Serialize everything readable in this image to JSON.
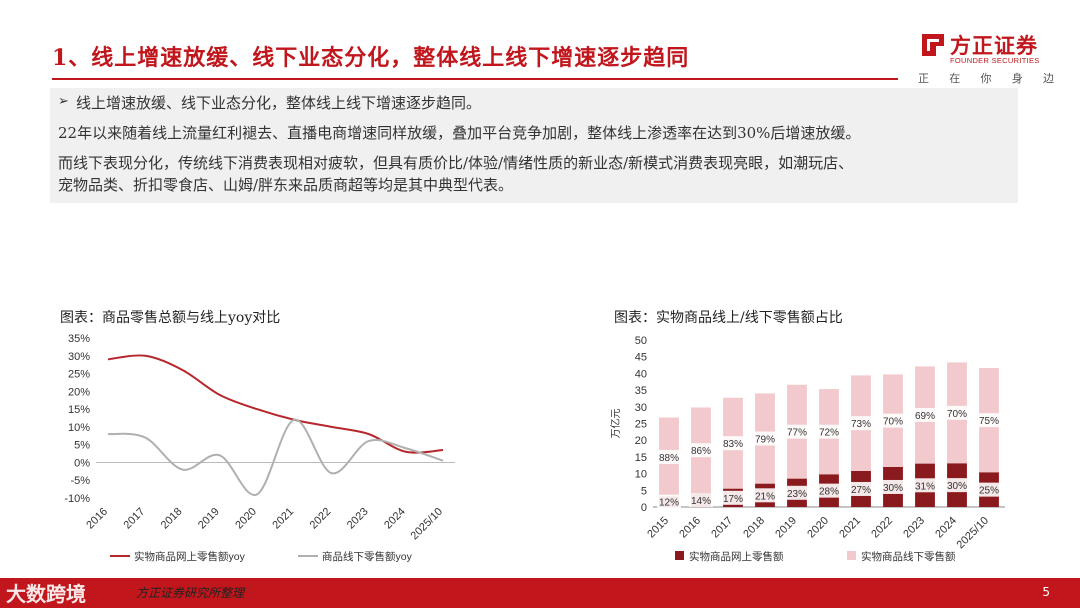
{
  "header": {
    "title": "1、线上增速放缓、线下业态分化，整体线上线下增速逐步趋同",
    "logo_cn": "方正证券",
    "logo_en": "FOUNDER SECURITIES",
    "logo_tagline": [
      "正",
      "在",
      "你",
      "身",
      "边"
    ]
  },
  "summary": {
    "bullet": "➢",
    "lines": [
      "线上增速放缓、线下业态分化，整体线上线下增速逐步趋同。",
      "22年以来随着线上流量红利褪去、直播电商增速同样放缓，叠加平台竞争加剧，整体线上渗透率在达到30%后增速放缓。",
      "而线下表现分化，传统线下消费表现相对疲软，但具有质价比/体验/情绪性质的新业态/新模式消费表现亮眼，如潮玩店、",
      "宠物品类、折扣零食店、山姆/胖东来品质商超等均是其中典型代表。"
    ]
  },
  "colors": {
    "accent": "#c0161c",
    "online": "#8b1a1f",
    "offline": "#f2c9cc",
    "line_online": "#b5272d",
    "line_offline": "#b0b0b0"
  },
  "chart_data": [
    {
      "type": "line",
      "title": "图表：商品零售总额与线上yoy对比",
      "categories": [
        "2016",
        "2017",
        "2018",
        "2019",
        "2020",
        "2021",
        "2022",
        "2023",
        "2024",
        "2025/10"
      ],
      "ylim": [
        -0.1,
        0.35
      ],
      "ytick_labels": [
        "35%",
        "30%",
        "25%",
        "20%",
        "15%",
        "10%",
        "5%",
        "0%",
        "-5%",
        "-10%"
      ],
      "series": [
        {
          "name": "实物商品网上零售额yoy",
          "values": [
            0.29,
            0.3,
            0.26,
            0.19,
            0.15,
            0.12,
            0.1,
            0.08,
            0.03,
            0.035
          ]
        },
        {
          "name": "商品线下零售额yoy",
          "values": [
            0.08,
            0.07,
            -0.02,
            0.02,
            -0.09,
            0.12,
            -0.03,
            0.06,
            0.04,
            0.005
          ]
        }
      ],
      "legend_position": "bottom"
    },
    {
      "type": "bar",
      "stacked": true,
      "title": "图表：实物商品线上/线下零售额占比",
      "ylabel": "万亿元",
      "ylim": [
        0,
        50
      ],
      "ytick_labels": [
        "50",
        "45",
        "40",
        "35",
        "30",
        "25",
        "20",
        "15",
        "10",
        "5",
        "0"
      ],
      "categories": [
        "2015",
        "2016",
        "2017",
        "2018",
        "2019",
        "2020",
        "2021",
        "2022",
        "2023",
        "2024",
        "2025/10"
      ],
      "series": [
        {
          "name": "实物商品网上零售额",
          "values": [
            3.2,
            4.2,
            5.5,
            7.0,
            8.5,
            9.8,
            10.8,
            12.0,
            13.0,
            13.1,
            10.4
          ],
          "labels": [
            "12%",
            "14%",
            "17%",
            "21%",
            "23%",
            "28%",
            "27%",
            "30%",
            "31%",
            "30%",
            "25%"
          ]
        },
        {
          "name": "实物商品线下零售额",
          "values": [
            23.6,
            25.6,
            27.2,
            27.0,
            28.1,
            25.5,
            28.6,
            27.7,
            29.1,
            30.2,
            31.2
          ],
          "labels": [
            "88%",
            "86%",
            "83%",
            "79%",
            "77%",
            "72%",
            "73%",
            "70%",
            "69%",
            "70%",
            "75%"
          ]
        }
      ],
      "legend_position": "bottom"
    }
  ],
  "footer": {
    "watermark": "大数跨境",
    "source": "方正证券研究所整理",
    "page": "5"
  }
}
